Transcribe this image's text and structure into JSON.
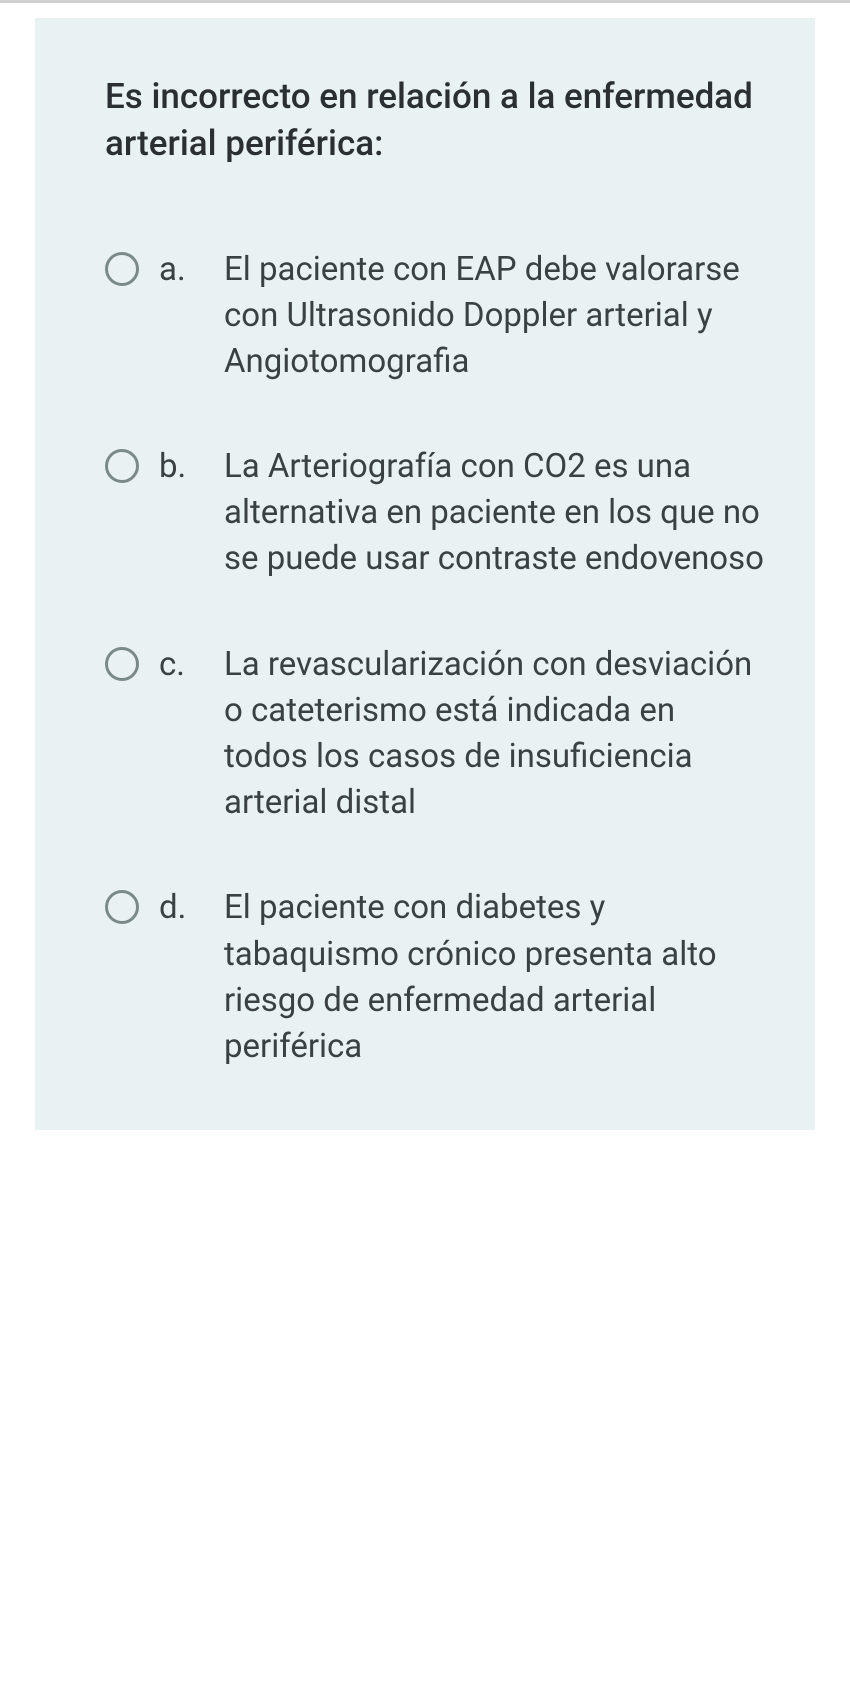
{
  "question": {
    "prompt": "Es incorrecto en relación a la enfermedad arterial periférica:",
    "options": [
      {
        "letter": "a.",
        "text": "El paciente con EAP debe valorarse con Ultrasonido Doppler arterial y Angiotomografia"
      },
      {
        "letter": "b.",
        "text": "La Arteriografía con CO2 es una alternativa en paciente en los que no se puede usar contraste endovenoso"
      },
      {
        "letter": "c.",
        "text": "La revascularización con desviación o cateterismo está indicada en todos los casos de insuficiencia arterial distal"
      },
      {
        "letter": "d.",
        "text": "El paciente con diabetes y tabaquismo crónico presenta alto riesgo de enfermedad arterial periférica"
      }
    ]
  },
  "colors": {
    "card_bg": "#e9f2f2",
    "text": "#3a4145",
    "radio_border": "#7a8a8a",
    "divider": "#d0d0d0"
  }
}
